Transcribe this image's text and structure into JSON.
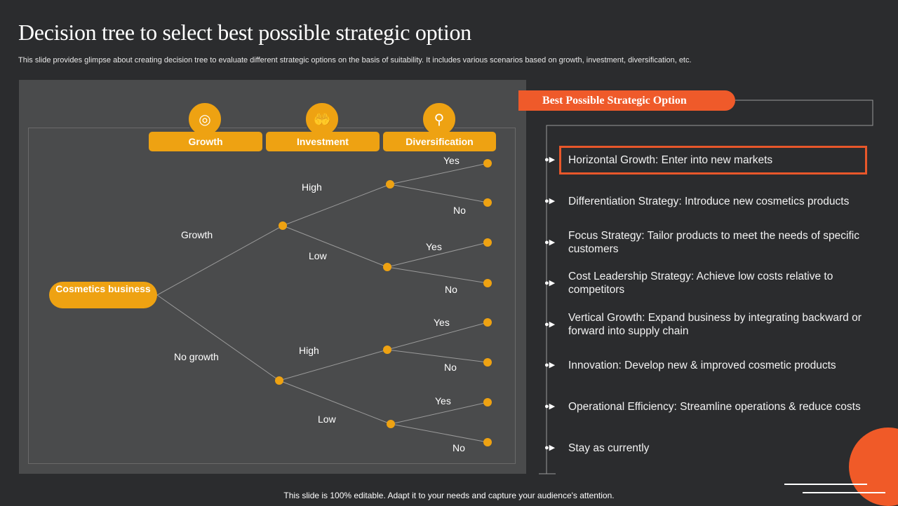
{
  "title": "Decision tree to select best possible strategic option",
  "subtitle": "This slide provides glimpse about creating decision tree to evaluate different strategic options on the basis of suitability. It includes various scenarios based on growth, investment, diversification, etc.",
  "colors": {
    "accent": "#eea212",
    "highlight": "#ef5a2a",
    "background": "#2b2c2e",
    "panel": "#4a4b4c"
  },
  "tree": {
    "headers": [
      {
        "label": "Growth",
        "icon": "growth-chart-icon"
      },
      {
        "label": "Investment",
        "icon": "piggy-bank-hands-icon"
      },
      {
        "label": "Diversification",
        "icon": "diversification-icon"
      }
    ],
    "root": "Cosmetics business",
    "level1": [
      "Growth",
      "No growth"
    ],
    "level2": [
      "High",
      "Low",
      "High",
      "Low"
    ],
    "leaves": [
      "Yes",
      "No",
      "Yes",
      "No",
      "Yes",
      "No",
      "Yes",
      "No"
    ]
  },
  "options": {
    "heading": "Best Possible Strategic Option",
    "items": [
      "Horizontal Growth:  Enter into new markets",
      "Differentiation Strategy: Introduce  new cosmetics products",
      "Focus Strategy: Tailor products to meet the needs of specific customers",
      "Cost Leadership Strategy: Achieve low costs relative to competitors",
      "Vertical Growth: Expand business by integrating backward or forward into supply chain",
      "Innovation:  Develop new & improved cosmetic products",
      "Operational Efficiency: Streamline operations & reduce costs",
      "Stay as currently"
    ],
    "highlighted_index": 0
  },
  "footer": "This slide is 100% editable. Adapt it to your needs and capture your audience's attention."
}
